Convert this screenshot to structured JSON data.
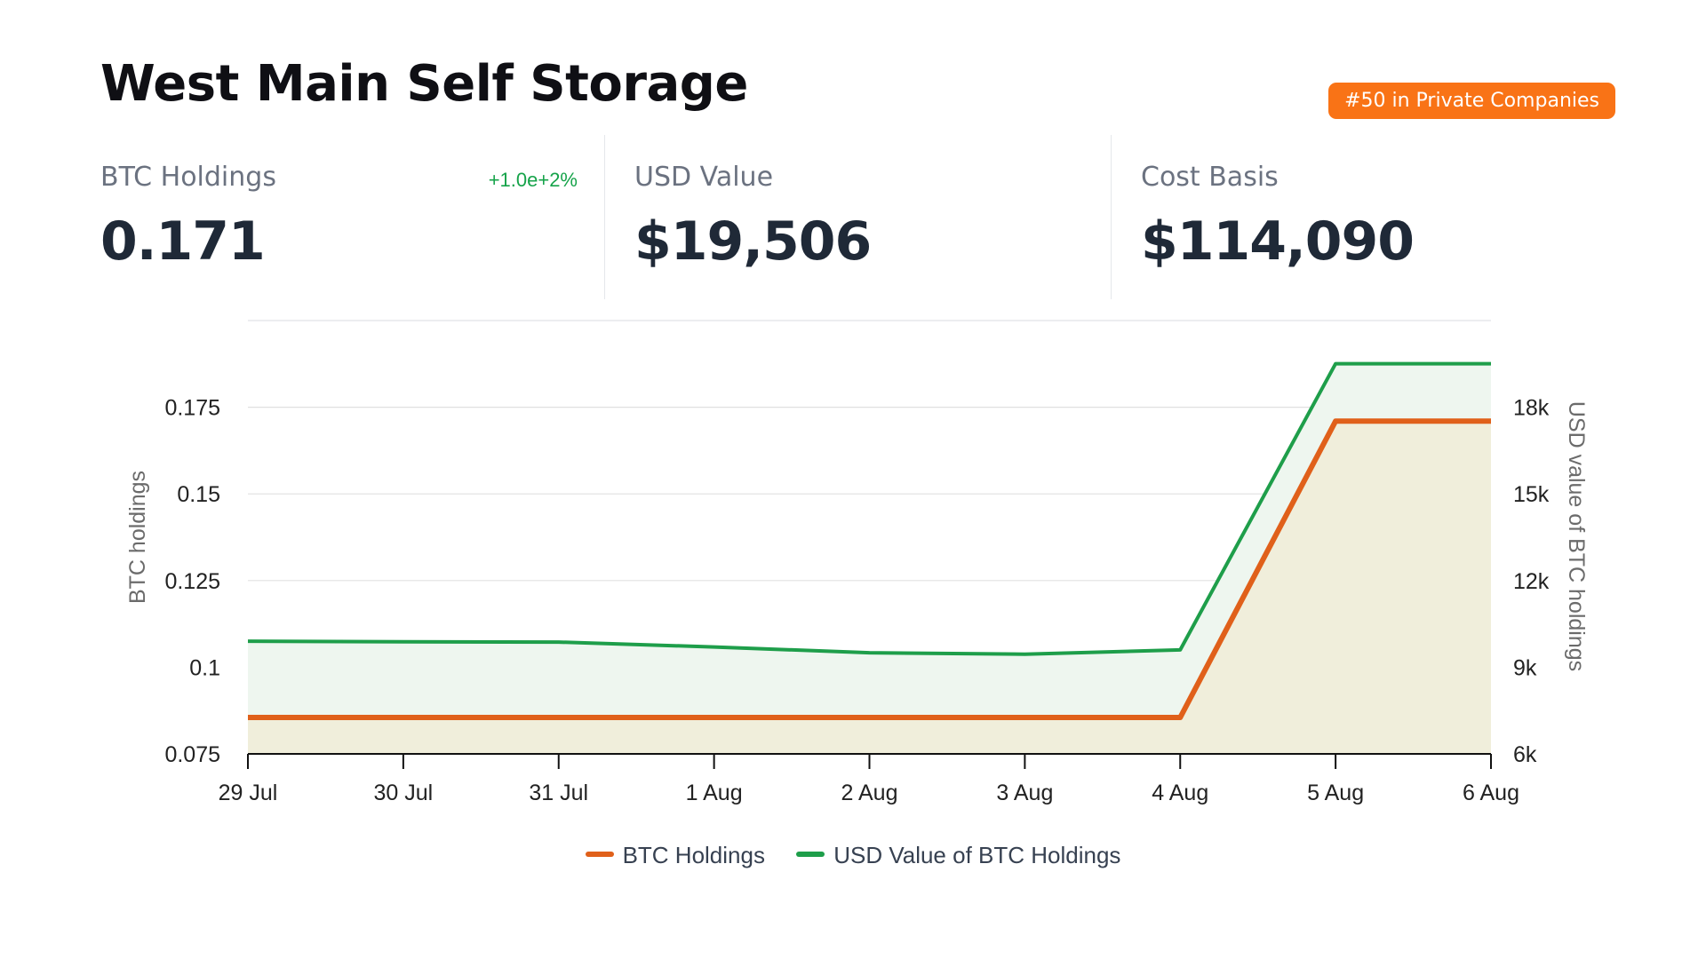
{
  "header": {
    "title": "West Main Self Storage",
    "rank_badge": "#50 in Private Companies"
  },
  "stats": {
    "btc_holdings": {
      "label": "BTC Holdings",
      "value": "0.171",
      "change": "+1.0e+2%"
    },
    "usd_value": {
      "label": "USD Value",
      "value": "$19,506"
    },
    "cost_basis": {
      "label": "Cost Basis",
      "value": "$114,090"
    }
  },
  "colors": {
    "btc_line": "#e0601a",
    "btc_fill": "#f0eedb",
    "usd_line": "#1e9e4a",
    "usd_fill": "#eef6ef",
    "badge": "#f97316",
    "positive": "#16a34a"
  },
  "chart_data": {
    "type": "area",
    "x": [
      "29 Jul",
      "30 Jul",
      "31 Jul",
      "1 Aug",
      "2 Aug",
      "3 Aug",
      "4 Aug",
      "5 Aug",
      "6 Aug"
    ],
    "series": [
      {
        "name": "BTC Holdings",
        "axis": "left",
        "values": [
          0.0855,
          0.0855,
          0.0855,
          0.0855,
          0.0855,
          0.0855,
          0.0855,
          0.171,
          0.171
        ]
      },
      {
        "name": "USD Value of BTC Holdings",
        "axis": "right",
        "values": [
          9900,
          9880,
          9870,
          9700,
          9500,
          9450,
          9600,
          19506,
          19506
        ]
      }
    ],
    "ylabel_left": "BTC holdings",
    "ylabel_right": "USD value of BTC holdings",
    "yticks_left": [
      {
        "value": 0.075,
        "label": "0.075"
      },
      {
        "value": 0.1,
        "label": "0.1"
      },
      {
        "value": 0.125,
        "label": "0.125"
      },
      {
        "value": 0.15,
        "label": "0.15"
      },
      {
        "value": 0.175,
        "label": "0.175"
      }
    ],
    "yticks_right": [
      {
        "value": 6000,
        "label": "6k"
      },
      {
        "value": 9000,
        "label": "9k"
      },
      {
        "value": 12000,
        "label": "12k"
      },
      {
        "value": 15000,
        "label": "15k"
      },
      {
        "value": 18000,
        "label": "18k"
      }
    ],
    "ylim_left": [
      0.075,
      0.2
    ],
    "ylim_right": [
      6000,
      21000
    ],
    "grid": true,
    "legend_position": "bottom-center"
  }
}
